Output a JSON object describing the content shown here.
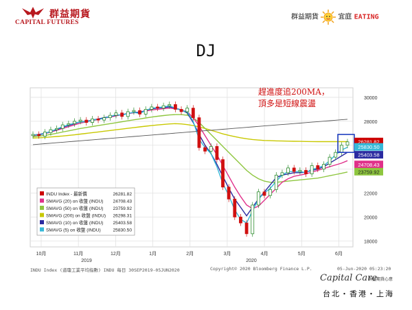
{
  "header": {
    "logo_cn": "群益期貨",
    "logo_en": "CAPITAL FUTURES",
    "brand_right_cn": "群益期貨",
    "brand_right_mid": "宜庭",
    "brand_right_en": "EATING"
  },
  "title": "DJ",
  "footer": {
    "left": "INDU Index (道瓊工業平均指數) INDU  每日 30SEP2019-05JUN2020",
    "mid": "Copyright© 2020 Bloomberg Finance L.P.",
    "right": "05-Jun-2020 05:23:20",
    "capital_care": "Capital Care",
    "capital_care_sub": "群益期貨心意",
    "cities": "台北・香港・上海"
  },
  "colors": {
    "brand_red": "#b8191f",
    "annotation_red": "#d01010",
    "box_blue": "#1f3fbf",
    "up_candle": "#2a8a2a",
    "down_candle": "#d01010"
  },
  "chart_data": {
    "type": "line",
    "annotation": "趕進度追200MA，\n頂多是短線震盪",
    "y_axis": {
      "ticks": [
        18000,
        20000,
        22000,
        24000,
        26000,
        28000,
        30000
      ],
      "ylim": [
        17500,
        30800
      ]
    },
    "x_axis": {
      "month_labels": [
        "10月",
        "11月",
        "12月",
        "1月",
        "2月",
        "3月",
        "4月",
        "5月",
        "6月"
      ],
      "year_labels": [
        "2019",
        "2020"
      ]
    },
    "legend": [
      {
        "name": "INDU Index - 最新價",
        "value": "26281.82",
        "color": "#cc0000"
      },
      {
        "name": "SMAVG (20)  on 收盤 (INDU)",
        "value": "24708.43",
        "color": "#e0308a"
      },
      {
        "name": "SMAVG (50)  on 收盤 (INDU)",
        "value": "23759.92",
        "color": "#8ec63f"
      },
      {
        "name": "SMAVG (200)  on 收盤 (INDU)",
        "value": "26298.31",
        "color": "#c8c800"
      },
      {
        "name": "SMAVG (10)  on 收盤 (INDU)",
        "value": "25403.58",
        "color": "#2a2aa0"
      },
      {
        "name": "SMAVG (5)  on 收盤 (INDU)",
        "value": "25830.50",
        "color": "#36b8d8"
      }
    ],
    "right_labels": [
      {
        "value": "26281.82",
        "color": "#cc0000"
      },
      {
        "value": "25830.50",
        "color": "#36b8d8"
      },
      {
        "value": "25403.58",
        "color": "#2a2aa0"
      },
      {
        "value": "24708.43",
        "color": "#e0308a"
      },
      {
        "value": "23759.92",
        "color": "#8ec63f"
      }
    ],
    "series": [
      {
        "name": "INDU Index - 最新價",
        "values": [
          26900,
          26800,
          27100,
          27300,
          27400,
          27700,
          27800,
          28000,
          28100,
          27900,
          28200,
          28100,
          28300,
          28500,
          28700,
          28400,
          28800,
          28900,
          28600,
          29000,
          29200,
          29100,
          29300,
          29400,
          29000,
          28800,
          29100,
          28300,
          25800,
          25500,
          25900,
          24800,
          22500,
          21500,
          20000,
          19500,
          18600,
          21000,
          22100,
          21800,
          22300,
          23500,
          23700,
          24100,
          23800,
          23900,
          23600,
          24300,
          24000,
          24400,
          25000,
          25400,
          26000,
          26282
        ]
      },
      {
        "name": "SMAVG (200)",
        "values": [
          26600,
          26620,
          26650,
          26690,
          26730,
          26770,
          26820,
          26870,
          26930,
          26990,
          27050,
          27110,
          27170,
          27230,
          27290,
          27350,
          27410,
          27470,
          27530,
          27590,
          27640,
          27690,
          27740,
          27780,
          27800,
          27780,
          27720,
          27640,
          27530,
          27400,
          27250,
          27100,
          26950,
          26830,
          26720,
          26620,
          26540,
          26480,
          26430,
          26400,
          26380,
          26360,
          26350,
          26340,
          26330,
          26320,
          26310,
          26305,
          26300,
          26300,
          26299,
          26298,
          26298,
          26298
        ]
      },
      {
        "name": "SMAVG (50)",
        "values": [
          26700,
          26750,
          26820,
          26900,
          27000,
          27100,
          27200,
          27300,
          27400,
          27480,
          27560,
          27640,
          27720,
          27800,
          27880,
          27960,
          28040,
          28120,
          28200,
          28280,
          28350,
          28420,
          28480,
          28530,
          28560,
          28560,
          28500,
          28300,
          27900,
          27400,
          26900,
          26400,
          25900,
          25400,
          24900,
          24400,
          23900,
          23500,
          23200,
          23000,
          22900,
          22900,
          22950,
          23000,
          23050,
          23100,
          23150,
          23200,
          23250,
          23350,
          23450,
          23550,
          23650,
          23760
        ]
      },
      {
        "name": "SMAVG (20)",
        "values": [
          26800,
          26850,
          26950,
          27100,
          27250,
          27400,
          27550,
          27700,
          27850,
          27950,
          28050,
          28150,
          28250,
          28350,
          28450,
          28550,
          28650,
          28700,
          28750,
          28850,
          28950,
          29000,
          29050,
          29100,
          29050,
          28950,
          28800,
          28300,
          27600,
          26800,
          26000,
          25200,
          24300,
          23400,
          22500,
          21700,
          21000,
          20700,
          20900,
          21400,
          21900,
          22400,
          22900,
          23200,
          23400,
          23500,
          23600,
          23750,
          23900,
          24050,
          24200,
          24350,
          24500,
          24708
        ]
      },
      {
        "name": "SMAVG (10)",
        "values": [
          26850,
          26900,
          27000,
          27150,
          27300,
          27500,
          27650,
          27800,
          27950,
          28000,
          28100,
          28200,
          28300,
          28400,
          28500,
          28550,
          28650,
          28750,
          28750,
          28900,
          29050,
          29100,
          29150,
          29200,
          29100,
          28950,
          28700,
          27900,
          26900,
          26000,
          25300,
          24400,
          23400,
          22400,
          21500,
          20800,
          20100,
          20800,
          21500,
          22100,
          22700,
          23300,
          23500,
          23600,
          23700,
          23700,
          23750,
          23900,
          24000,
          24200,
          24500,
          24800,
          25100,
          25404
        ]
      },
      {
        "name": "SMAVG (5)",
        "values": [
          26880,
          26850,
          26980,
          27150,
          27350,
          27550,
          27700,
          27850,
          27950,
          27950,
          28100,
          28150,
          28250,
          28400,
          28550,
          28500,
          28650,
          28750,
          28650,
          28900,
          29100,
          29150,
          29200,
          29300,
          29100,
          28900,
          28800,
          28000,
          26500,
          25800,
          25300,
          24200,
          22800,
          21800,
          20600,
          19800,
          19500,
          20500,
          21500,
          22000,
          22400,
          23000,
          23500,
          23800,
          23800,
          23800,
          23700,
          24000,
          24100,
          24300,
          24700,
          25200,
          25600,
          25831
        ]
      },
      {
        "name": "long-term trend line",
        "values": [
          26050,
          26090,
          26130,
          26170,
          26210,
          26250,
          26290,
          26330,
          26370,
          26410,
          26450,
          26490,
          26530,
          26570,
          26610,
          26650,
          26690,
          26730,
          26770,
          26810,
          26850,
          26890,
          26930,
          26970,
          27010,
          27050,
          27090,
          27130,
          27170,
          27210,
          27250,
          27290,
          27330,
          27370,
          27410,
          27450,
          27490,
          27530,
          27570,
          27610,
          27650,
          27690,
          27730,
          27770,
          27810,
          27850,
          27890,
          27930,
          27970,
          28010,
          28050,
          28090,
          28130,
          28170
        ]
      }
    ],
    "candles": [
      [
        26800,
        26900
      ],
      [
        26900,
        26800
      ],
      [
        26750,
        27100
      ],
      [
        27050,
        27300
      ],
      [
        27300,
        27400
      ],
      [
        27400,
        27700
      ],
      [
        27700,
        27800
      ],
      [
        27800,
        28000
      ],
      [
        28000,
        28100
      ],
      [
        28100,
        27900
      ],
      [
        27900,
        28200
      ],
      [
        28200,
        28100
      ],
      [
        28100,
        28300
      ],
      [
        28300,
        28500
      ],
      [
        28500,
        28700
      ],
      [
        28700,
        28400
      ],
      [
        28400,
        28800
      ],
      [
        28800,
        28900
      ],
      [
        28900,
        28600
      ],
      [
        28600,
        29000
      ],
      [
        29000,
        29200
      ],
      [
        29200,
        29100
      ],
      [
        29100,
        29300
      ],
      [
        29300,
        29400
      ],
      [
        29400,
        29000
      ],
      [
        29000,
        28800
      ],
      [
        28800,
        29100
      ],
      [
        29100,
        28300
      ],
      [
        28300,
        25800
      ],
      [
        25800,
        25500
      ],
      [
        25500,
        25900
      ],
      [
        25900,
        24800
      ],
      [
        24800,
        22500
      ],
      [
        22500,
        21500
      ],
      [
        21500,
        20000
      ],
      [
        20000,
        19500
      ],
      [
        19500,
        18600
      ],
      [
        18600,
        21000
      ],
      [
        21000,
        22100
      ],
      [
        22100,
        21800
      ],
      [
        21800,
        22300
      ],
      [
        22300,
        23500
      ],
      [
        23500,
        23700
      ],
      [
        23700,
        24100
      ],
      [
        24100,
        23800
      ],
      [
        23800,
        23900
      ],
      [
        23900,
        23600
      ],
      [
        23600,
        24300
      ],
      [
        24300,
        24000
      ],
      [
        24000,
        24400
      ],
      [
        24400,
        25000
      ],
      [
        25000,
        25400
      ],
      [
        25400,
        26000
      ],
      [
        26000,
        26282
      ]
    ]
  }
}
